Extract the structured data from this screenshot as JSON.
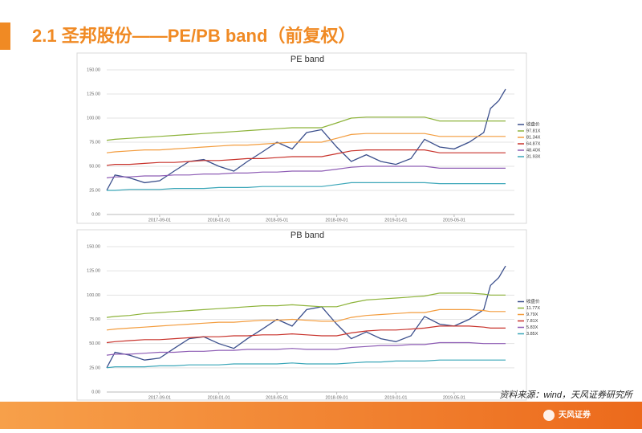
{
  "header": {
    "title": "2.1 圣邦股份——PE/PB band（前复权）"
  },
  "footer": {
    "source": "资料来源：wind，天风证券研究所",
    "logo": "天风证券"
  },
  "chart_data": [
    {
      "type": "line",
      "title": "PE band",
      "x": [
        "2017-05-15",
        "2017-06-01",
        "2017-07-01",
        "2017-08-01",
        "2017-09-01",
        "2017-10-01",
        "2017-11-01",
        "2017-12-01",
        "2018-01-01",
        "2018-02-01",
        "2018-03-01",
        "2018-04-01",
        "2018-05-01",
        "2018-06-01",
        "2018-07-01",
        "2018-08-01",
        "2018-09-01",
        "2018-10-01",
        "2018-11-01",
        "2018-12-01",
        "2019-01-01",
        "2019-02-01",
        "2019-03-01",
        "2019-04-01",
        "2019-05-01",
        "2019-06-01",
        "2019-07-01",
        "2019-07-15",
        "2019-08-01",
        "2019-08-15"
      ],
      "xlim": [
        "2017-05-15",
        "2019-08-20"
      ],
      "xticks": [
        "2017-09-01",
        "2018-01-01",
        "2018-05-01",
        "2018-09-01",
        "2019-01-01",
        "2019-05-01"
      ],
      "ylim": [
        0,
        150
      ],
      "yticks": [
        {
          "value": 0,
          "label": "0.00"
        },
        {
          "value": 25,
          "label": "25.00"
        },
        {
          "value": 50,
          "label": "50.00"
        },
        {
          "value": 75,
          "label": "75.00"
        },
        {
          "value": 100,
          "label": "100.00"
        },
        {
          "value": 125,
          "label": "125.00"
        },
        {
          "value": 150,
          "label": "150.00"
        }
      ],
      "grid": true,
      "legend": "right",
      "series": [
        {
          "name": "收盘价",
          "color": "#3b4f8c",
          "values": [
            25,
            41,
            38,
            33,
            35,
            45,
            55,
            57,
            50,
            45,
            55,
            65,
            75,
            68,
            85,
            88,
            70,
            55,
            62,
            55,
            52,
            58,
            78,
            70,
            68,
            75,
            85,
            110,
            118,
            130
          ]
        },
        {
          "name": "97.81X",
          "color": "#8db33a",
          "values": [
            77,
            78,
            79,
            80,
            81,
            82,
            83,
            84,
            85,
            86,
            87,
            88,
            89,
            90,
            90,
            90,
            95,
            100,
            101,
            101,
            101,
            101,
            101,
            97,
            97,
            97,
            97,
            97,
            97,
            97
          ]
        },
        {
          "name": "81.34X",
          "color": "#f39c3d",
          "values": [
            64,
            65,
            66,
            67,
            67,
            68,
            69,
            70,
            71,
            72,
            72,
            73,
            74,
            75,
            75,
            75,
            79,
            83,
            84,
            84,
            84,
            84,
            84,
            81,
            81,
            81,
            81,
            81,
            81,
            81
          ]
        },
        {
          "name": "64.87X",
          "color": "#c8322b",
          "values": [
            51,
            52,
            52,
            53,
            54,
            54,
            55,
            56,
            56,
            57,
            58,
            58,
            59,
            60,
            60,
            60,
            63,
            66,
            67,
            67,
            67,
            67,
            67,
            64,
            64,
            64,
            64,
            64,
            64,
            64
          ]
        },
        {
          "name": "48.40X",
          "color": "#8e5db5",
          "values": [
            38,
            39,
            39,
            40,
            40,
            41,
            41,
            42,
            42,
            43,
            43,
            44,
            44,
            45,
            45,
            45,
            47,
            49,
            50,
            50,
            50,
            50,
            50,
            48,
            48,
            48,
            48,
            48,
            48,
            48
          ]
        },
        {
          "name": "31.93X",
          "color": "#3aa6b8",
          "values": [
            25,
            25,
            26,
            26,
            26,
            27,
            27,
            27,
            28,
            28,
            28,
            29,
            29,
            29,
            29,
            29,
            31,
            33,
            33,
            33,
            33,
            33,
            33,
            32,
            32,
            32,
            32,
            32,
            32,
            32
          ]
        }
      ]
    },
    {
      "type": "line",
      "title": "PB band",
      "x": [
        "2017-05-15",
        "2017-06-01",
        "2017-07-01",
        "2017-08-01",
        "2017-09-01",
        "2017-10-01",
        "2017-11-01",
        "2017-12-01",
        "2018-01-01",
        "2018-02-01",
        "2018-03-01",
        "2018-04-01",
        "2018-05-01",
        "2018-06-01",
        "2018-07-01",
        "2018-08-01",
        "2018-09-01",
        "2018-10-01",
        "2018-11-01",
        "2018-12-01",
        "2019-01-01",
        "2019-02-01",
        "2019-03-01",
        "2019-04-01",
        "2019-05-01",
        "2019-06-01",
        "2019-07-01",
        "2019-07-15",
        "2019-08-01",
        "2019-08-15"
      ],
      "xlim": [
        "2017-05-15",
        "2019-08-20"
      ],
      "xticks": [
        "2017-09-01",
        "2018-01-01",
        "2018-05-01",
        "2018-09-01",
        "2019-01-01",
        "2019-05-01"
      ],
      "ylim": [
        0,
        150
      ],
      "yticks": [
        {
          "value": 0,
          "label": "0.00"
        },
        {
          "value": 25,
          "label": "25.00"
        },
        {
          "value": 50,
          "label": "50.00"
        },
        {
          "value": 75,
          "label": "75.00"
        },
        {
          "value": 100,
          "label": "100.00"
        },
        {
          "value": 125,
          "label": "125.00"
        },
        {
          "value": 150,
          "label": "150.00"
        }
      ],
      "grid": true,
      "legend": "right",
      "series": [
        {
          "name": "收盘价",
          "color": "#3b4f8c",
          "values": [
            25,
            41,
            38,
            33,
            35,
            45,
            55,
            57,
            50,
            45,
            55,
            65,
            75,
            68,
            85,
            88,
            70,
            55,
            62,
            55,
            52,
            58,
            78,
            70,
            68,
            75,
            85,
            110,
            118,
            130
          ]
        },
        {
          "name": "11.77X",
          "color": "#8db33a",
          "values": [
            77,
            78,
            79,
            81,
            82,
            83,
            84,
            85,
            86,
            87,
            88,
            89,
            89,
            90,
            89,
            88,
            88,
            92,
            95,
            96,
            97,
            98,
            99,
            102,
            102,
            102,
            101,
            100,
            100,
            100
          ]
        },
        {
          "name": "9.79X",
          "color": "#f39c3d",
          "values": [
            64,
            65,
            66,
            67,
            68,
            69,
            70,
            71,
            72,
            72,
            73,
            74,
            74,
            75,
            74,
            73,
            73,
            77,
            79,
            80,
            81,
            82,
            82,
            85,
            85,
            85,
            84,
            83,
            83,
            83
          ]
        },
        {
          "name": "7.81X",
          "color": "#c8322b",
          "values": [
            51,
            52,
            53,
            54,
            54,
            55,
            56,
            57,
            57,
            58,
            58,
            59,
            59,
            60,
            59,
            58,
            58,
            61,
            63,
            64,
            64,
            65,
            66,
            68,
            68,
            68,
            67,
            66,
            66,
            66
          ]
        },
        {
          "name": "5.83X",
          "color": "#8e5db5",
          "values": [
            38,
            39,
            39,
            40,
            41,
            41,
            42,
            42,
            43,
            43,
            44,
            44,
            44,
            45,
            44,
            44,
            44,
            46,
            47,
            48,
            48,
            49,
            49,
            51,
            51,
            51,
            50,
            50,
            50,
            50
          ]
        },
        {
          "name": "3.85X",
          "color": "#3aa6b8",
          "values": [
            25,
            26,
            26,
            26,
            27,
            27,
            28,
            28,
            28,
            29,
            29,
            29,
            29,
            30,
            29,
            29,
            29,
            30,
            31,
            31,
            32,
            32,
            32,
            33,
            33,
            33,
            33,
            33,
            33,
            33
          ]
        }
      ]
    }
  ]
}
